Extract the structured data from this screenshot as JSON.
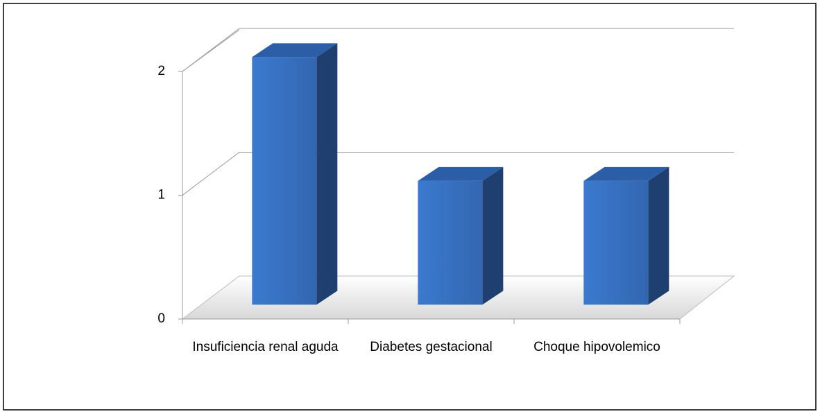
{
  "chart_data": {
    "type": "bar3d",
    "categories": [
      "Insuficiencia renal aguda",
      "Diabetes gestacional",
      "Choque hipovolemico"
    ],
    "values": [
      2,
      1,
      1
    ],
    "color": "#3a75c4",
    "ylim": [
      0,
      2
    ],
    "yticks": [
      0,
      1,
      2
    ],
    "grid": true
  }
}
